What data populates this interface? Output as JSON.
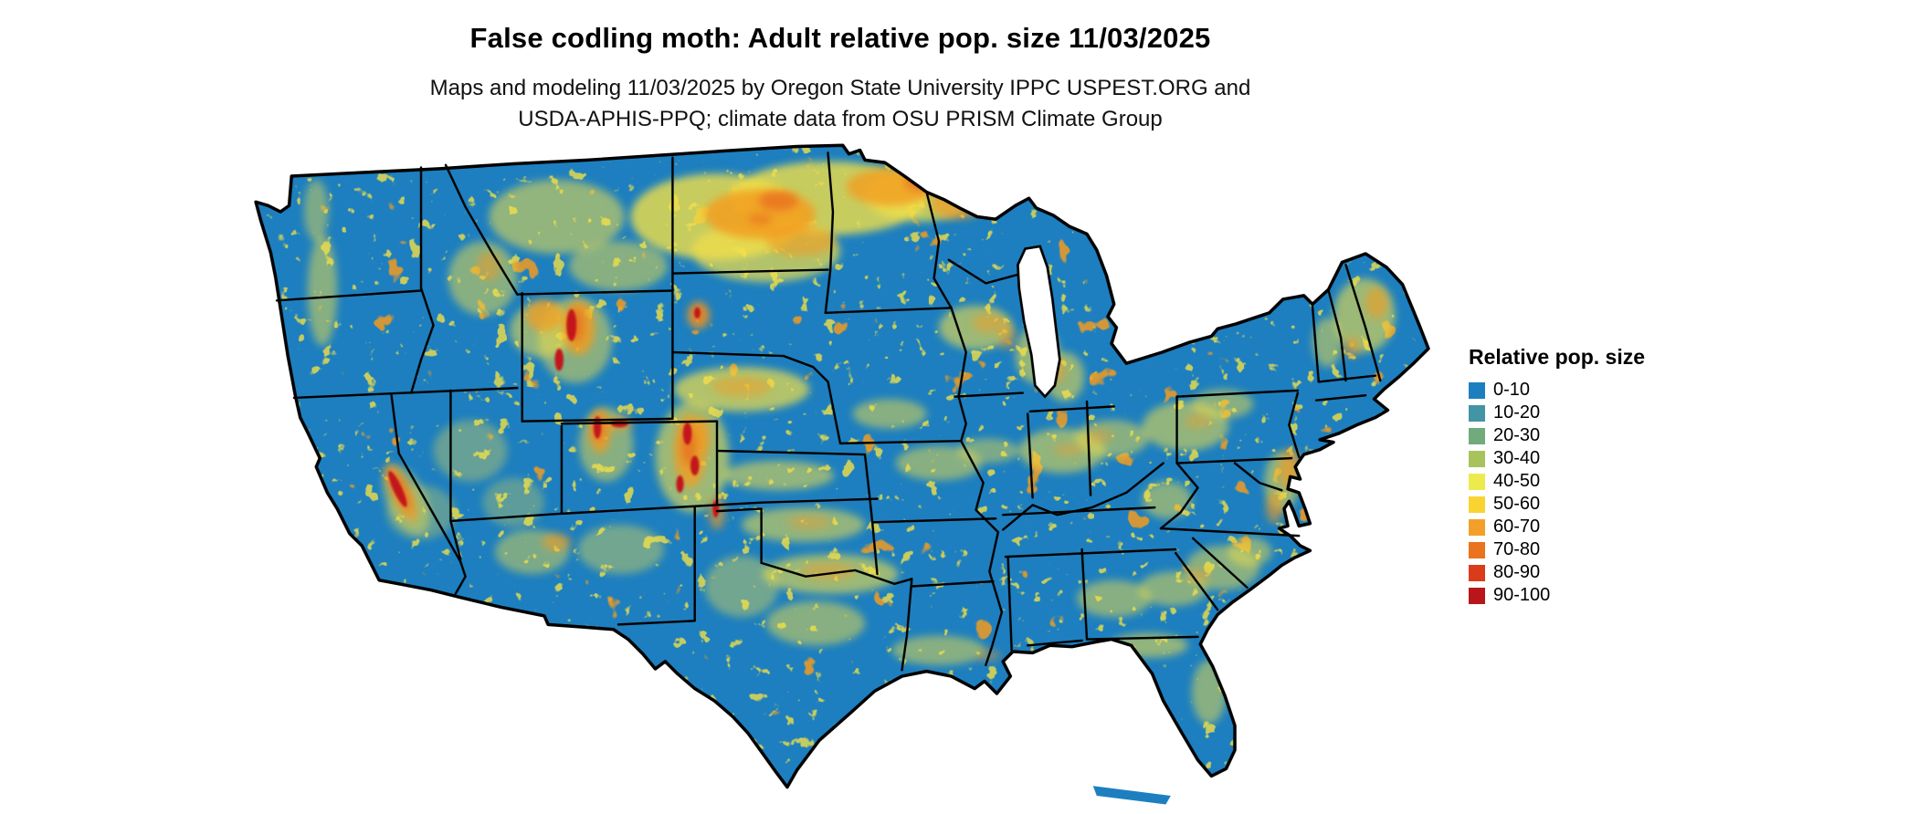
{
  "header": {
    "title": "False codling moth: Adult relative pop. size 11/03/2025",
    "subtitle_line1": "Maps and modeling 11/03/2025 by Oregon State University IPPC USPEST.ORG and",
    "subtitle_line2": "USDA-APHIS-PPQ; climate data from OSU PRISM Climate Group"
  },
  "map": {
    "region": "Contiguous United States",
    "date": "11/03/2025",
    "base_color": "#1d7fbf",
    "water_color": "#ffffff",
    "state_border_color": "#000000",
    "hotspot_colors": {
      "yellow": "#f2e048",
      "orange": "#f29d21",
      "deep_orange": "#e8701f",
      "red": "#c2161b"
    }
  },
  "legend": {
    "title": "Relative pop. size",
    "items": [
      {
        "label": "0-10",
        "color": "#1d7fbf"
      },
      {
        "label": "10-20",
        "color": "#4394a4"
      },
      {
        "label": "20-30",
        "color": "#71aa7c"
      },
      {
        "label": "30-40",
        "color": "#a9c35c"
      },
      {
        "label": "40-50",
        "color": "#edea4d"
      },
      {
        "label": "50-60",
        "color": "#f9d431"
      },
      {
        "label": "60-70",
        "color": "#f3a02a"
      },
      {
        "label": "70-80",
        "color": "#e9731f"
      },
      {
        "label": "80-90",
        "color": "#da3b1b"
      },
      {
        "label": "90-100",
        "color": "#b8161a"
      }
    ]
  },
  "chart_data": {
    "type": "heatmap",
    "title": "False codling moth: Adult relative pop. size 11/03/2025",
    "legend_title": "Relative pop. size",
    "classes": [
      "0-10",
      "10-20",
      "20-30",
      "30-40",
      "40-50",
      "50-60",
      "60-70",
      "70-80",
      "80-90",
      "90-100"
    ],
    "class_colors": [
      "#1d7fbf",
      "#4394a4",
      "#71aa7c",
      "#a9c35c",
      "#edea4d",
      "#f9d431",
      "#f3a02a",
      "#e9731f",
      "#da3b1b",
      "#b8161a"
    ],
    "value_range": [
      0,
      100
    ],
    "dominant_class_on_map": "0-10"
  }
}
